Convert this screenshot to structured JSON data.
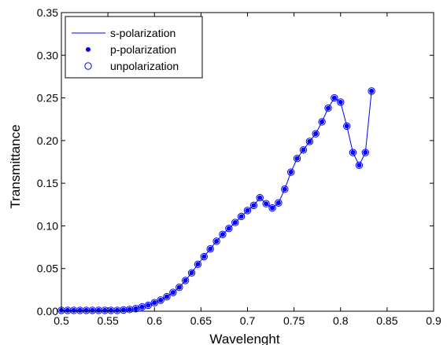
{
  "chart_data": {
    "type": "line",
    "xlabel": "Wavelenght",
    "ylabel": "Transmittance",
    "xlim": [
      0.5,
      0.9
    ],
    "ylim": [
      0,
      0.35
    ],
    "x_ticks": [
      "0.5",
      "0.55",
      "0.6",
      "0.65",
      "0.7",
      "0.75",
      "0.8",
      "0.85",
      "0.9"
    ],
    "y_ticks": [
      "0.00",
      "0.05",
      "0.10",
      "0.15",
      "0.20",
      "0.25",
      "0.30",
      "0.35"
    ],
    "grid": false,
    "legend_position": "top-left",
    "colors": {
      "series": "#0000ff",
      "axes": "#000000",
      "background": "#ffffff"
    },
    "x": [
      0.5,
      0.5067,
      0.5133,
      0.52,
      0.5267,
      0.5333,
      0.54,
      0.5467,
      0.5533,
      0.56,
      0.5667,
      0.5733,
      0.58,
      0.5867,
      0.5933,
      0.6,
      0.6067,
      0.6133,
      0.62,
      0.6267,
      0.6333,
      0.64,
      0.6467,
      0.6533,
      0.66,
      0.6667,
      0.6733,
      0.68,
      0.6867,
      0.6933,
      0.7,
      0.7067,
      0.7133,
      0.72,
      0.7267,
      0.7333,
      0.74,
      0.7467,
      0.7533,
      0.76,
      0.7667,
      0.7733,
      0.78,
      0.7867,
      0.7933,
      0.8,
      0.8067,
      0.8133,
      0.82,
      0.8267,
      0.8333
    ],
    "series": [
      {
        "name": "s-polarization",
        "style": "line",
        "values": [
          0.001,
          0.001,
          0.001,
          0.001,
          0.001,
          0.001,
          0.001,
          0.001,
          0.001,
          0.001,
          0.0015,
          0.002,
          0.003,
          0.005,
          0.007,
          0.01,
          0.013,
          0.017,
          0.022,
          0.028,
          0.036,
          0.045,
          0.055,
          0.064,
          0.073,
          0.082,
          0.09,
          0.097,
          0.104,
          0.111,
          0.118,
          0.124,
          0.133,
          0.126,
          0.121,
          0.127,
          0.143,
          0.163,
          0.179,
          0.189,
          0.199,
          0.208,
          0.222,
          0.238,
          0.25,
          0.245,
          0.217,
          0.186,
          0.171,
          0.186,
          0.258
        ]
      },
      {
        "name": "p-polarization",
        "style": "filled-dot",
        "values": [
          0.001,
          0.001,
          0.001,
          0.001,
          0.001,
          0.001,
          0.001,
          0.001,
          0.001,
          0.001,
          0.0015,
          0.002,
          0.003,
          0.005,
          0.007,
          0.01,
          0.013,
          0.017,
          0.022,
          0.028,
          0.036,
          0.045,
          0.055,
          0.064,
          0.073,
          0.082,
          0.09,
          0.097,
          0.104,
          0.111,
          0.118,
          0.124,
          0.133,
          0.126,
          0.121,
          0.127,
          0.143,
          0.163,
          0.179,
          0.189,
          0.199,
          0.208,
          0.222,
          0.238,
          0.25,
          0.245,
          0.217,
          0.186,
          0.171,
          0.186,
          0.258
        ]
      },
      {
        "name": "unpolarization",
        "style": "open-circle",
        "values": [
          0.001,
          0.001,
          0.001,
          0.001,
          0.001,
          0.001,
          0.001,
          0.001,
          0.001,
          0.001,
          0.0015,
          0.002,
          0.003,
          0.005,
          0.007,
          0.01,
          0.013,
          0.017,
          0.022,
          0.028,
          0.036,
          0.045,
          0.055,
          0.064,
          0.073,
          0.082,
          0.09,
          0.097,
          0.104,
          0.111,
          0.118,
          0.124,
          0.133,
          0.126,
          0.121,
          0.127,
          0.143,
          0.163,
          0.179,
          0.189,
          0.199,
          0.208,
          0.222,
          0.238,
          0.25,
          0.245,
          0.217,
          0.186,
          0.171,
          0.186,
          0.258
        ]
      }
    ]
  }
}
